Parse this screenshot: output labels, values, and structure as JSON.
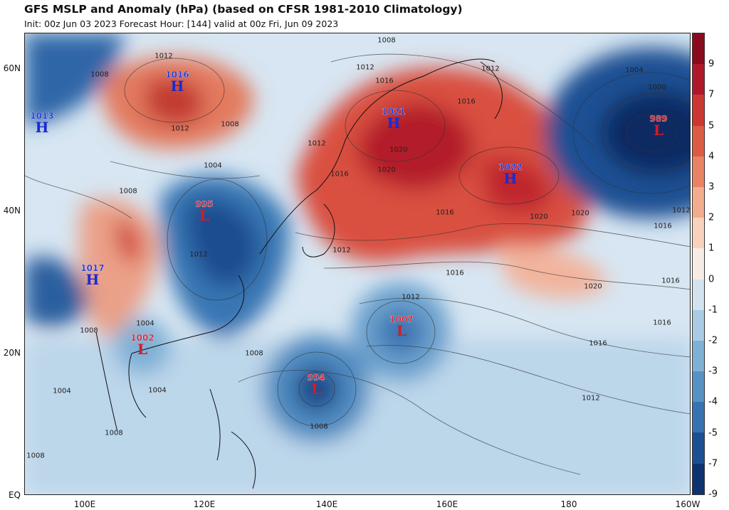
{
  "title": "GFS MSLP and Anomaly (hPa) (based on CFSR 1981-2010 Climatology)",
  "subtitle": "Init: 00z Jun 03 2023   Forecast Hour: [144]   valid at 00z Fri, Jun 09 2023",
  "lat_labels": [
    "60N",
    "40N",
    "20N",
    "EQ"
  ],
  "lon_labels": [
    "100E",
    "120E",
    "140E",
    "160E",
    "180",
    "160W"
  ],
  "colorbar": {
    "ticks": [
      "9",
      "7",
      "5",
      "4",
      "3",
      "2",
      "1",
      "0",
      "-1",
      "-2",
      "-3",
      "-4",
      "-5",
      "-7",
      "-9"
    ],
    "colors": [
      "#8a0b1e",
      "#b0172a",
      "#cc3633",
      "#dd5a45",
      "#ea8264",
      "#f3ac8e",
      "#f9d2bd",
      "#f6ece6",
      "#d2e2ef",
      "#a9cbe3",
      "#7fb0d6",
      "#5792c4",
      "#3673b0",
      "#1d4f93",
      "#0f3270"
    ]
  },
  "pressure_centers": [
    {
      "type": "H",
      "value": "1016"
    },
    {
      "type": "H",
      "value": "1013"
    },
    {
      "type": "H",
      "value": "1021"
    },
    {
      "type": "H",
      "value": "1022"
    },
    {
      "type": "L",
      "value": "989"
    },
    {
      "type": "L",
      "value": "995"
    },
    {
      "type": "H",
      "value": "1017"
    },
    {
      "type": "L",
      "value": "1002"
    },
    {
      "type": "L",
      "value": "1007"
    },
    {
      "type": "L",
      "value": "994"
    }
  ],
  "isobar_labels": [
    "1012",
    "1008",
    "1008",
    "1012",
    "1004",
    "1008",
    "1012",
    "1016",
    "1016",
    "1012",
    "1012",
    "1008",
    "1020",
    "1016",
    "1020",
    "1016",
    "1012",
    "1004",
    "1000",
    "1012",
    "1016",
    "1020",
    "1020",
    "1016",
    "1012",
    "1016",
    "1016",
    "1020",
    "1012",
    "1016",
    "1008",
    "1004",
    "1004",
    "1008",
    "1008",
    "1008",
    "1012",
    "1004",
    "1008"
  ]
}
